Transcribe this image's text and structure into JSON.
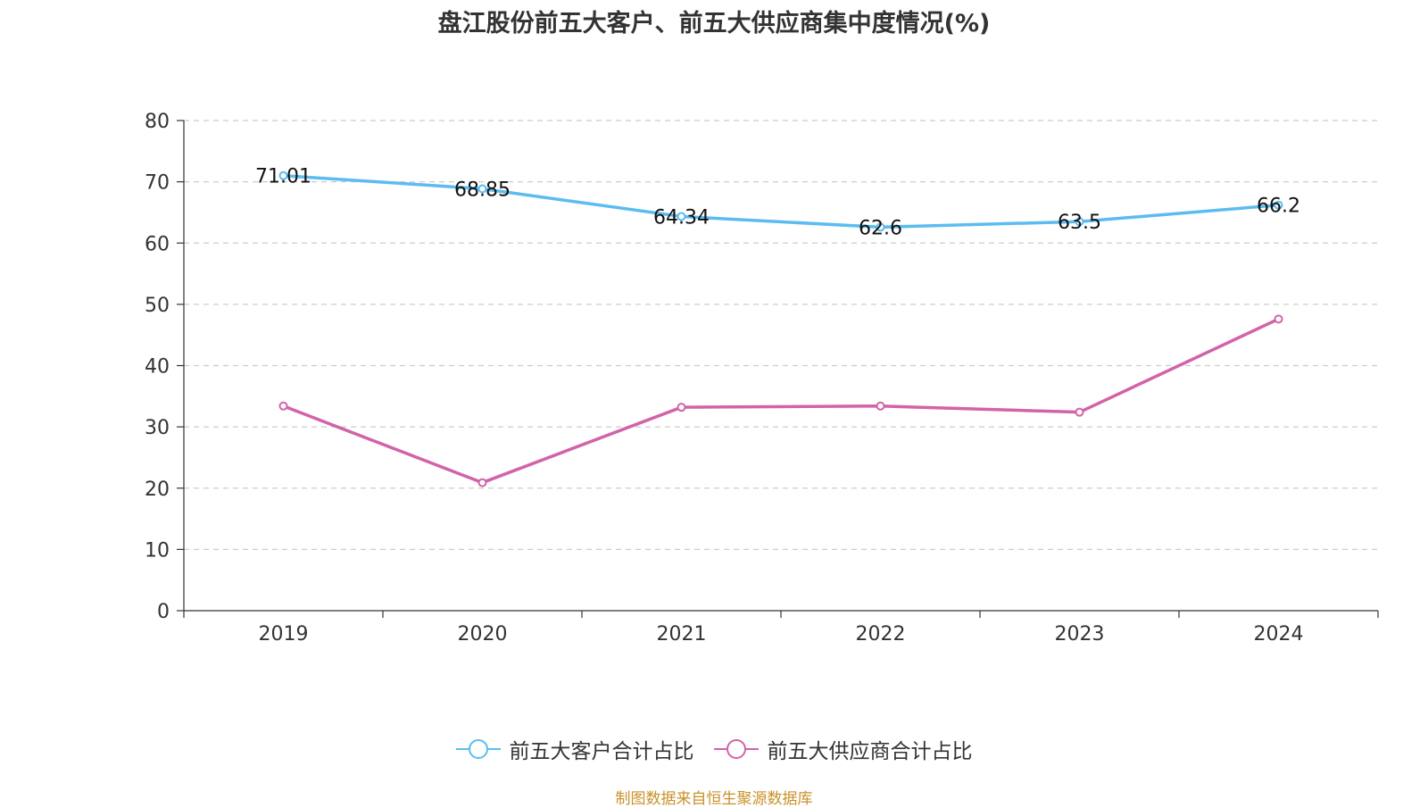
{
  "chart_data": {
    "type": "line",
    "title": "盘江股份前五大客户、前五大供应商集中度情况(%)",
    "xlabel": "",
    "ylabel": "",
    "categories": [
      "2019",
      "2020",
      "2021",
      "2022",
      "2023",
      "2024"
    ],
    "ylim": [
      0,
      80
    ],
    "yticks": [
      0,
      10,
      20,
      30,
      40,
      50,
      60,
      70,
      80
    ],
    "grid": true,
    "legend_position": "bottom",
    "series": [
      {
        "name": "前五大客户合计占比",
        "color": "#5bbcf0",
        "values": [
          71.01,
          68.85,
          64.34,
          62.6,
          63.5,
          66.2
        ],
        "labels": [
          "71.01",
          "68.85",
          "64.34",
          "62.6",
          "63.5",
          "66.2"
        ]
      },
      {
        "name": "前五大供应商合计占比",
        "color": "#d263a8",
        "values": [
          33.4,
          20.9,
          33.2,
          33.4,
          32.4,
          47.6
        ]
      }
    ]
  },
  "footer": {
    "source": "制图数据来自恒生聚源数据库"
  }
}
